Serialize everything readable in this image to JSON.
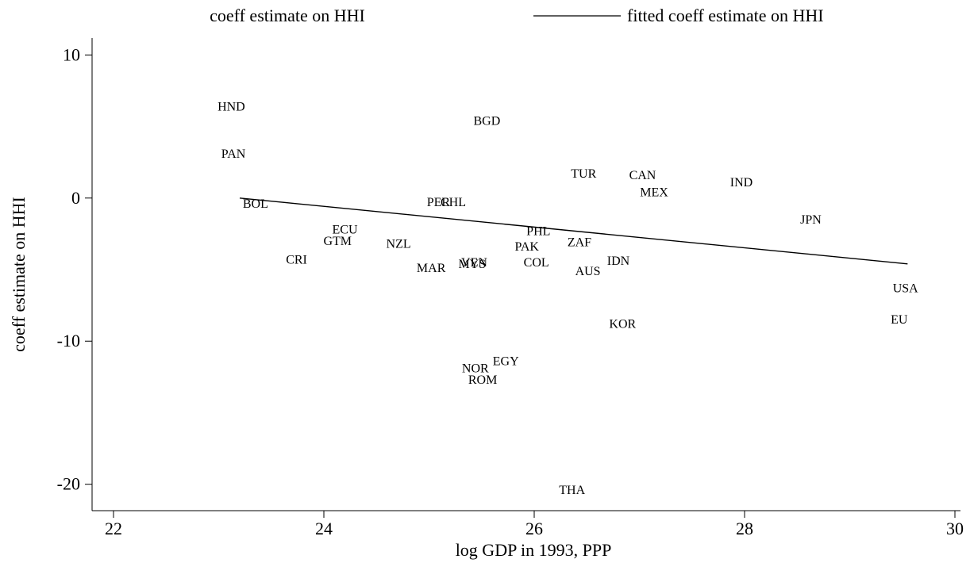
{
  "legend": {
    "scatter_label": "coeff estimate on HHI",
    "line_label": "fitted coeff estimate on HHI"
  },
  "chart_data": {
    "type": "scatter",
    "title": "",
    "xlabel": "log GDP in 1993, PPP",
    "ylabel": "coeff estimate on HHI",
    "xlim": [
      22,
      30
    ],
    "ylim": [
      -21.8,
      11.2
    ],
    "xticks": [
      22,
      24,
      26,
      28,
      30
    ],
    "yticks": [
      10,
      0,
      -10,
      -20
    ],
    "ytick_labels": [
      "10",
      "0",
      "-10",
      "-20"
    ],
    "grid": false,
    "legend_position": "top",
    "points": [
      {
        "label": "HND",
        "x": 23.12,
        "y": 6.4
      },
      {
        "label": "PAN",
        "x": 23.14,
        "y": 3.1
      },
      {
        "label": "BOL",
        "x": 23.35,
        "y": -0.4
      },
      {
        "label": "CRI",
        "x": 23.74,
        "y": -4.3
      },
      {
        "label": "ECU",
        "x": 24.2,
        "y": -2.2
      },
      {
        "label": "GTM",
        "x": 24.13,
        "y": -3.0
      },
      {
        "label": "NZL",
        "x": 24.71,
        "y": -3.2
      },
      {
        "label": "MAR",
        "x": 25.02,
        "y": -4.9
      },
      {
        "label": "PER",
        "x": 25.09,
        "y": -0.3
      },
      {
        "label": "CHL",
        "x": 25.23,
        "y": -0.3
      },
      {
        "label": "BGD",
        "x": 25.55,
        "y": 5.4
      },
      {
        "label": "VEN",
        "x": 25.43,
        "y": -4.5
      },
      {
        "label": "MYS",
        "x": 25.41,
        "y": -4.6
      },
      {
        "label": "NOR",
        "x": 25.44,
        "y": -11.9
      },
      {
        "label": "ROM",
        "x": 25.51,
        "y": -12.7
      },
      {
        "label": "EGY",
        "x": 25.73,
        "y": -11.4
      },
      {
        "label": "PAK",
        "x": 25.93,
        "y": -3.4
      },
      {
        "label": "PHL",
        "x": 26.04,
        "y": -2.3
      },
      {
        "label": "COL",
        "x": 26.02,
        "y": -4.5
      },
      {
        "label": "ZAF",
        "x": 26.43,
        "y": -3.1
      },
      {
        "label": "TUR",
        "x": 26.47,
        "y": 1.7
      },
      {
        "label": "AUS",
        "x": 26.51,
        "y": -5.1
      },
      {
        "label": "IDN",
        "x": 26.8,
        "y": -4.4
      },
      {
        "label": "KOR",
        "x": 26.84,
        "y": -8.8
      },
      {
        "label": "THA",
        "x": 26.36,
        "y": -20.4
      },
      {
        "label": "CAN",
        "x": 27.03,
        "y": 1.6
      },
      {
        "label": "MEX",
        "x": 27.14,
        "y": 0.4
      },
      {
        "label": "IND",
        "x": 27.97,
        "y": 1.1
      },
      {
        "label": "JPN",
        "x": 28.63,
        "y": -1.5
      },
      {
        "label": "USA",
        "x": 29.53,
        "y": -6.3
      },
      {
        "label": "EU",
        "x": 29.47,
        "y": -8.5
      }
    ],
    "fitted_line": {
      "x": [
        23.2,
        29.55
      ],
      "y": [
        0.0,
        -4.6
      ]
    }
  }
}
